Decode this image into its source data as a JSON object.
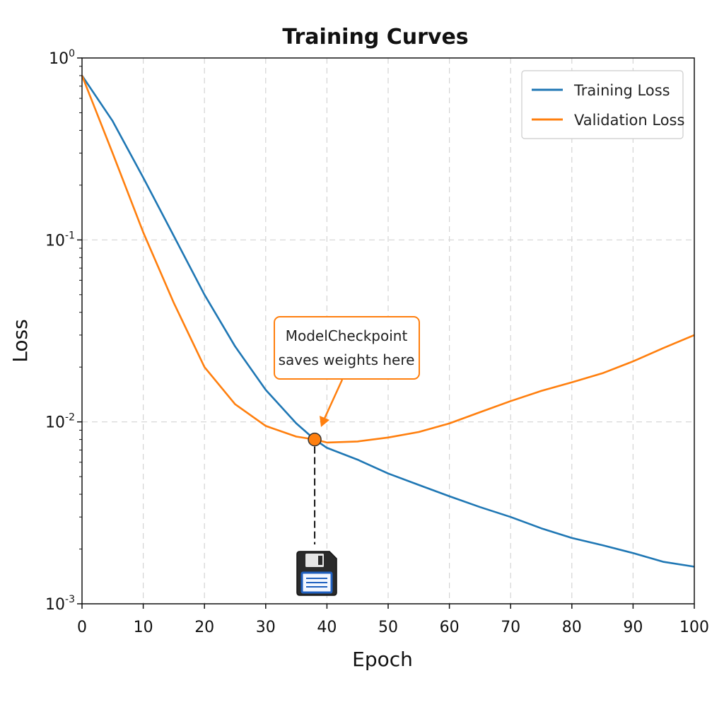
{
  "chart_data": {
    "type": "line",
    "title": "Training Curves",
    "xlabel": "Epoch",
    "ylabel": "Loss",
    "xlim": [
      0,
      100
    ],
    "ylim": [
      0.001,
      1
    ],
    "yscale": "log",
    "grid": true,
    "legend_position": "top-right",
    "x_ticks": [
      0,
      10,
      20,
      30,
      40,
      50,
      60,
      70,
      80,
      90,
      100
    ],
    "x_tick_labels": [
      "0",
      "10",
      "20",
      "30",
      "40",
      "50",
      "60",
      "70",
      "80",
      "90",
      "100"
    ],
    "y_ticks": [
      {
        "value": 1,
        "base": "10",
        "exp": "0"
      },
      {
        "value": 0.1,
        "base": "10",
        "exp": "-1"
      },
      {
        "value": 0.01,
        "base": "10",
        "exp": "-2"
      },
      {
        "value": 0.001,
        "base": "10",
        "exp": "-3"
      }
    ],
    "x": [
      0,
      5,
      10,
      15,
      20,
      25,
      30,
      35,
      38,
      40,
      45,
      50,
      55,
      60,
      65,
      70,
      75,
      80,
      85,
      90,
      95,
      100
    ],
    "series": [
      {
        "name": "Training Loss",
        "color": "#1f77b4",
        "values": [
          0.8,
          0.45,
          0.22,
          0.105,
          0.05,
          0.026,
          0.015,
          0.0098,
          0.008,
          0.0072,
          0.0062,
          0.0052,
          0.0045,
          0.0039,
          0.0034,
          0.003,
          0.0026,
          0.0023,
          0.0021,
          0.0019,
          0.0017,
          0.0016
        ]
      },
      {
        "name": "Validation Loss",
        "color": "#ff7f0e",
        "values": [
          0.8,
          0.3,
          0.11,
          0.045,
          0.02,
          0.0125,
          0.0095,
          0.0083,
          0.008,
          0.0077,
          0.0078,
          0.0082,
          0.0088,
          0.0098,
          0.0113,
          0.013,
          0.0148,
          0.0165,
          0.0185,
          0.0215,
          0.0255,
          0.03
        ]
      }
    ],
    "annotation": {
      "text_lines": [
        "ModelCheckpoint",
        "saves weights here"
      ],
      "x": 38,
      "y": 0.008,
      "color": "#ff7f0e",
      "icon": "floppy-disk-icon"
    }
  }
}
